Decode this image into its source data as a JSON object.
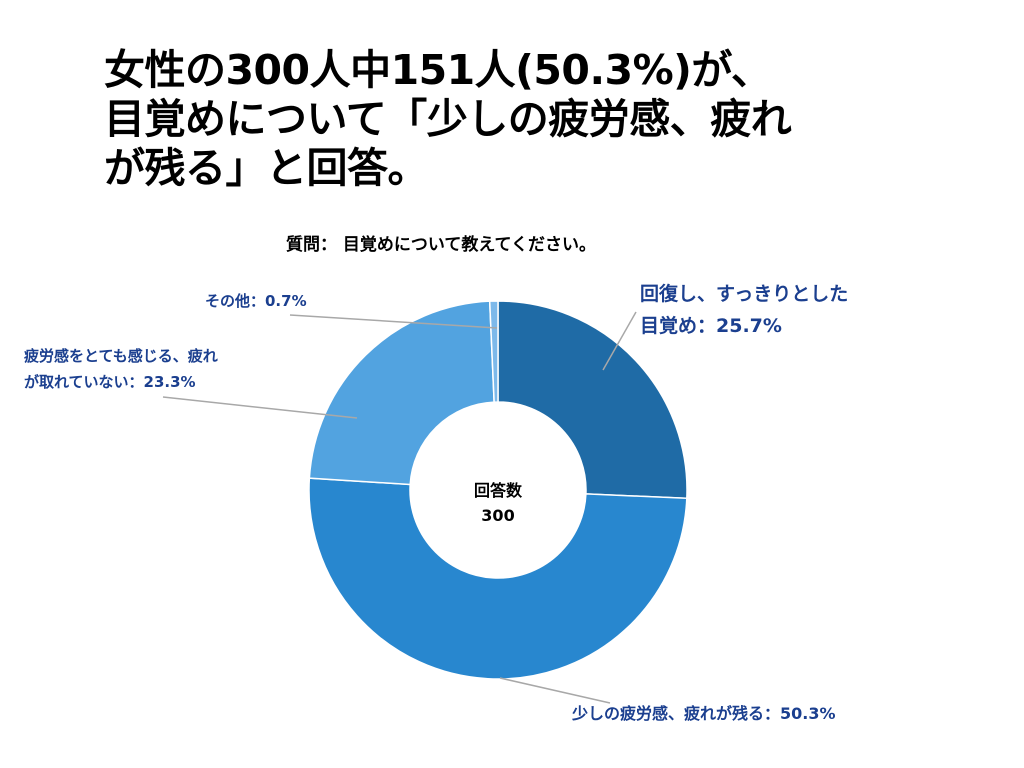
{
  "headline": {
    "line1": "女性の300人中151人(50.3%)が、",
    "line2": "目覚めについて「少しの疲労感、疲れ",
    "line3": "が残る」と回答。"
  },
  "chart_data": {
    "type": "pie",
    "subtitle": "質問： 目覚めについて教えてください。",
    "center_label": "回答数",
    "center_value": "300",
    "start_angle_deg": 0,
    "slices": [
      {
        "label_lines": [
          "回復し、すっきりとした",
          "目覚め：25.7%"
        ],
        "value": 25.7,
        "color": "#1f6ba6"
      },
      {
        "label_lines": [
          "少しの疲労感、疲れが残る：50.3%"
        ],
        "value": 50.3,
        "color": "#2887cf"
      },
      {
        "label_lines": [
          "疲労感をとても感じる、疲れ",
          "が取れていない：23.3%"
        ],
        "value": 23.3,
        "color": "#52a3e0"
      },
      {
        "label_lines": [
          "その他：0.7%"
        ],
        "value": 0.7,
        "color": "#7db9ea"
      }
    ]
  }
}
